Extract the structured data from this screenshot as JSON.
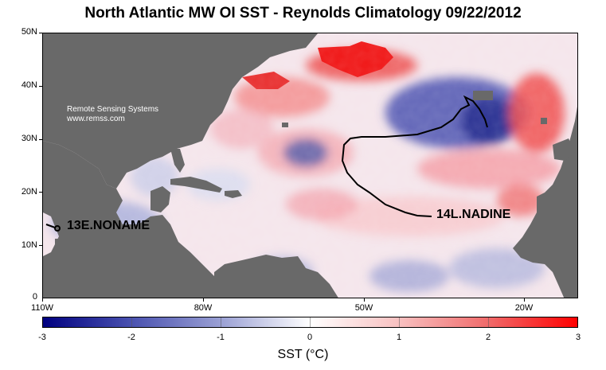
{
  "title": "North Atlantic  MW OI SST - Reynolds Climatology 09/22/2012",
  "credit": {
    "line1": "Remote Sensing Systems",
    "line2": "www.remss.com"
  },
  "y_axis_labels": [
    "50N",
    "40N",
    "30N",
    "20N",
    "10N",
    "0"
  ],
  "x_axis_labels": [
    "110W",
    "80W",
    "50W",
    "20W"
  ],
  "storms": [
    {
      "name": "13E.NONAME"
    },
    {
      "name": "14L.NADINE"
    }
  ],
  "colorbar": {
    "ticks": [
      "-3",
      "-2",
      "-1",
      "0",
      "1",
      "2",
      "3"
    ],
    "title": "SST (°C)",
    "min_color": "#000080",
    "mid_color": "#ffffff",
    "max_color": "#ff0000",
    "land_color": "#696969"
  }
}
